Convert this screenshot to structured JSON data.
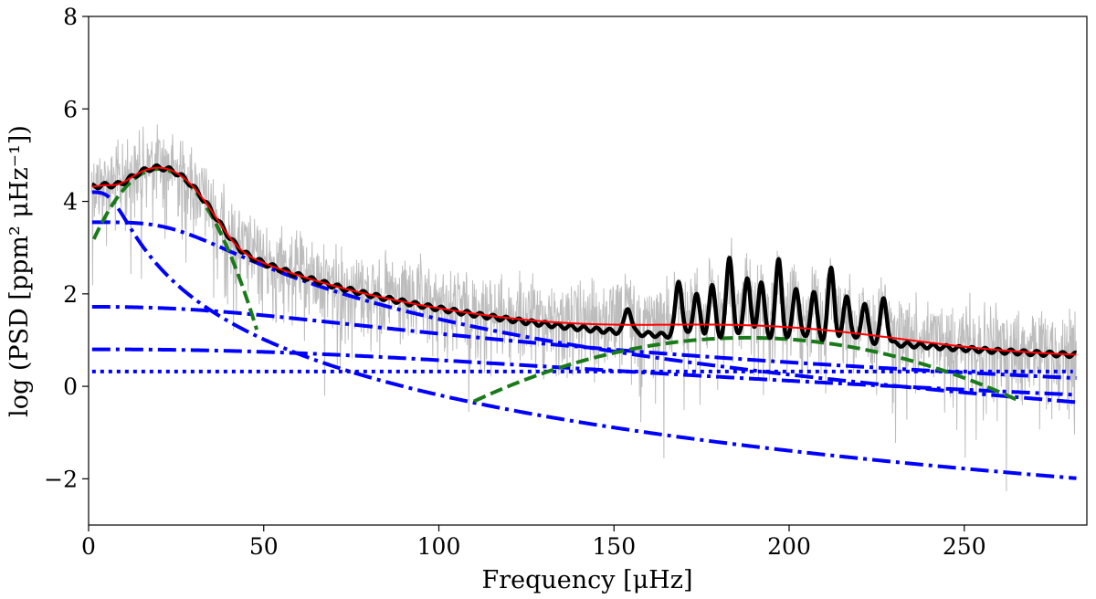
{
  "chart_data": {
    "type": "line",
    "title": "",
    "xlabel": "Frequency [μHz]",
    "ylabel": "log (PSD [ppm² μHz⁻¹])",
    "xlim": [
      0,
      285
    ],
    "ylim": [
      -3,
      8
    ],
    "xticks": [
      0,
      50,
      100,
      150,
      200,
      250
    ],
    "yticks": [
      -2,
      0,
      2,
      4,
      6,
      8
    ],
    "xtick_labels": [
      "0",
      "50",
      "100",
      "150",
      "200",
      "250"
    ],
    "ytick_labels": [
      "−2",
      "0",
      "2",
      "4",
      "6",
      "8"
    ],
    "grid": false,
    "noise_model": {
      "white_noise_level": 0.32,
      "low_hump": {
        "center": 20,
        "height": 4.7,
        "width": 7
      },
      "oscillation_hump": {
        "numax": 188,
        "height": 1.05,
        "width": 31
      },
      "granulation": [
        {
          "name": "granulation-1",
          "amplitude": 3.55,
          "characteristic_frequency": 30,
          "exponent": 4
        },
        {
          "name": "granulation-2",
          "amplitude": 4.2,
          "characteristic_frequency": 8,
          "exponent": 4
        },
        {
          "name": "granulation-3",
          "amplitude": 1.72,
          "characteristic_frequency": 65,
          "exponent": 2.4
        },
        {
          "name": "granulation-4",
          "amplitude": 0.8,
          "characteristic_frequency": 115,
          "exponent": 2.4
        }
      ],
      "mode_peaks": [
        {
          "frequency": 154.0,
          "height": 0.55
        },
        {
          "frequency": 168.5,
          "height": 1.2
        },
        {
          "frequency": 173.5,
          "height": 0.95
        },
        {
          "frequency": 178.0,
          "height": 1.1
        },
        {
          "frequency": 183.0,
          "height": 1.75
        },
        {
          "frequency": 188.0,
          "height": 1.35
        },
        {
          "frequency": 192.0,
          "height": 1.25
        },
        {
          "frequency": 197.0,
          "height": 1.7
        },
        {
          "frequency": 202.0,
          "height": 1.15
        },
        {
          "frequency": 207.0,
          "height": 1.05
        },
        {
          "frequency": 212.0,
          "height": 1.55
        },
        {
          "frequency": 216.5,
          "height": 1.0
        },
        {
          "frequency": 221.5,
          "height": 0.85
        },
        {
          "frequency": 227.0,
          "height": 0.95
        }
      ]
    },
    "series": [
      {
        "name": "observed-psd",
        "style": "thin-solid",
        "color": "#bdbdbd"
      },
      {
        "name": "smoothed-psd",
        "style": "thick-solid",
        "color": "#000000"
      },
      {
        "name": "total-fit",
        "style": "solid",
        "color": "#ff0000"
      },
      {
        "name": "gaussian-envelope",
        "style": "dashed",
        "color": "#1a7a1a"
      },
      {
        "name": "granulation-components",
        "style": "dash-dot",
        "color": "#0000ff"
      },
      {
        "name": "white-noise",
        "style": "dotted",
        "color": "#0000ff"
      }
    ]
  }
}
